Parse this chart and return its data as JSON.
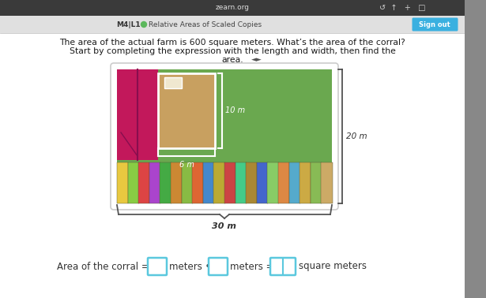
{
  "bg_color": "#c8c8c8",
  "page_bg": "#ffffff",
  "browser_bar_color": "#3a3a3a",
  "url_text": "zearn.org",
  "nav_bar_color": "#e0e0e0",
  "tab_text": "M4|L1",
  "tab_icon_color": "#5cb85c",
  "tab_subtitle": "Relative Areas of Scaled Copies",
  "sign_out_color": "#3ab0e0",
  "sign_out_text": "Sign out",
  "main_text_line1": "The area of the actual farm is 600 square meters. What’s the area of the corral?",
  "main_text_line2": "Start by completing the expression with the length and width, then find the",
  "main_text_line3": "area.",
  "dim_10": "10 m",
  "dim_20": "20 m",
  "dim_6": "6 m",
  "dim_30": "30 m",
  "bottom_label": "Area of the corral =",
  "bottom_meters1": "meters •",
  "bottom_meters2": "meters =",
  "bottom_sq": "square meters",
  "farm_green": "#6aa84f",
  "barn_color": "#c2185b",
  "barn_dark": "#880e4f",
  "corral_color": "#c8a060",
  "box_border_color": "#5bc8de",
  "right_edge_color": "#888888",
  "tab_edge_color": "#bbbbbb"
}
